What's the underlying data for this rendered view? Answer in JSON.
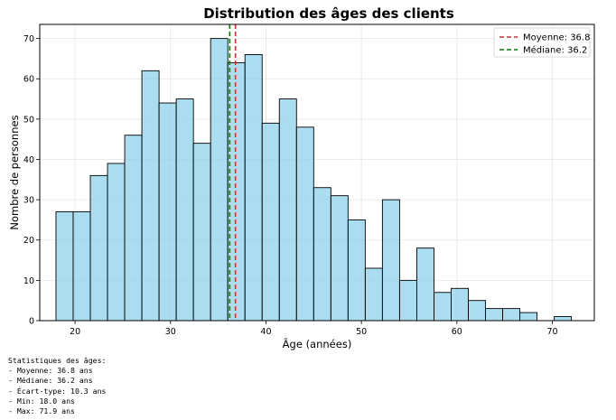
{
  "chart_data": {
    "type": "bar",
    "title": "Distribution des âges des clients",
    "xlabel": "Âge (années)",
    "ylabel": "Nombre de personnes",
    "xlim": [
      16.3,
      74.4
    ],
    "ylim": [
      0,
      73.5
    ],
    "xticks": [
      20,
      30,
      40,
      50,
      60,
      70
    ],
    "yticks": [
      0,
      10,
      20,
      30,
      40,
      50,
      60,
      70
    ],
    "grid": true,
    "bar_color": "#87CEEB",
    "bar_edge_color": "#000000",
    "bins": [
      {
        "x0": 18.0,
        "x1": 19.8,
        "count": 27
      },
      {
        "x0": 19.8,
        "x1": 21.6,
        "count": 27
      },
      {
        "x0": 21.6,
        "x1": 23.4,
        "count": 36
      },
      {
        "x0": 23.4,
        "x1": 25.2,
        "count": 39
      },
      {
        "x0": 25.2,
        "x1": 27.0,
        "count": 46
      },
      {
        "x0": 27.0,
        "x1": 28.8,
        "count": 62
      },
      {
        "x0": 28.8,
        "x1": 30.6,
        "count": 54
      },
      {
        "x0": 30.6,
        "x1": 32.4,
        "count": 55
      },
      {
        "x0": 32.4,
        "x1": 34.2,
        "count": 44
      },
      {
        "x0": 34.2,
        "x1": 36.0,
        "count": 70
      },
      {
        "x0": 36.0,
        "x1": 37.8,
        "count": 64
      },
      {
        "x0": 37.8,
        "x1": 39.6,
        "count": 66
      },
      {
        "x0": 39.6,
        "x1": 41.4,
        "count": 49
      },
      {
        "x0": 41.4,
        "x1": 43.2,
        "count": 55
      },
      {
        "x0": 43.2,
        "x1": 45.0,
        "count": 48
      },
      {
        "x0": 45.0,
        "x1": 46.8,
        "count": 33
      },
      {
        "x0": 46.8,
        "x1": 48.6,
        "count": 31
      },
      {
        "x0": 48.6,
        "x1": 50.4,
        "count": 25
      },
      {
        "x0": 50.4,
        "x1": 52.2,
        "count": 13
      },
      {
        "x0": 52.2,
        "x1": 54.0,
        "count": 30
      },
      {
        "x0": 54.0,
        "x1": 55.8,
        "count": 10
      },
      {
        "x0": 55.8,
        "x1": 57.6,
        "count": 18
      },
      {
        "x0": 57.6,
        "x1": 59.4,
        "count": 7
      },
      {
        "x0": 59.4,
        "x1": 61.2,
        "count": 8
      },
      {
        "x0": 61.2,
        "x1": 63.0,
        "count": 5
      },
      {
        "x0": 63.0,
        "x1": 64.8,
        "count": 3
      },
      {
        "x0": 64.8,
        "x1": 66.6,
        "count": 3
      },
      {
        "x0": 66.6,
        "x1": 68.4,
        "count": 2
      },
      {
        "x0": 68.4,
        "x1": 70.2,
        "count": 0
      },
      {
        "x0": 70.2,
        "x1": 72.0,
        "count": 1
      }
    ],
    "reference_lines": [
      {
        "label": "Moyenne: 36.8",
        "value": 36.8,
        "color": "#d62728",
        "style": "dashed"
      },
      {
        "label": "Médiane: 36.2",
        "value": 36.2,
        "color": "#008000",
        "style": "dashed"
      }
    ],
    "legend_position": "top-right"
  },
  "stats_text": [
    "Statistiques des âges:",
    "- Moyenne: 36.8 ans",
    "- Médiane: 36.2 ans",
    "- Écart-type: 10.3 ans",
    "- Min: 18.0 ans",
    "- Max: 71.9 ans"
  ]
}
